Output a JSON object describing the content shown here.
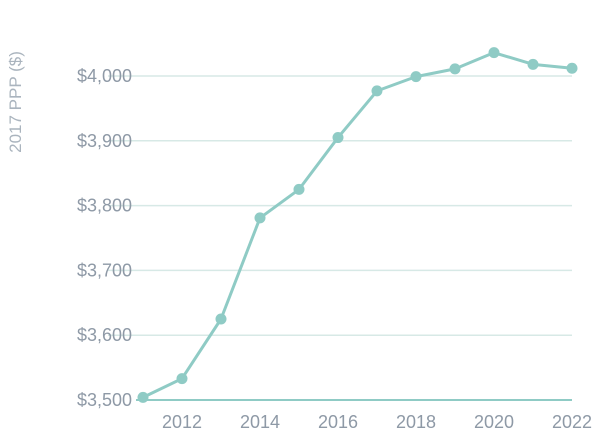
{
  "chart_data": {
    "type": "line",
    "ylabel": "2017 PPP ($)",
    "xlabel": "",
    "x": [
      2011,
      2012,
      2013,
      2014,
      2015,
      2016,
      2017,
      2018,
      2019,
      2020,
      2021,
      2022
    ],
    "series": [
      {
        "values": [
          3504,
          3533,
          3625,
          3781,
          3825,
          3905,
          3977,
          3999,
          4011,
          4036,
          4018,
          4012
        ]
      }
    ],
    "xticks": [
      2012,
      2014,
      2016,
      2018,
      2020,
      2022
    ],
    "yticks": [
      3500,
      3600,
      3700,
      3800,
      3900,
      4000
    ],
    "ytick_labels": [
      "$3,500",
      "$3,600",
      "$3,700",
      "$3,800",
      "$3,900",
      "$4,000"
    ],
    "xlim": [
      2011,
      2022
    ],
    "ylim": [
      3500,
      4000
    ],
    "grid": true,
    "colors": {
      "line": "#8fcbc5",
      "grid": "#d7e9e6",
      "axis": "#8fcbc5",
      "tick_text": "#8e99a6",
      "axis_title": "#aab4be"
    }
  }
}
